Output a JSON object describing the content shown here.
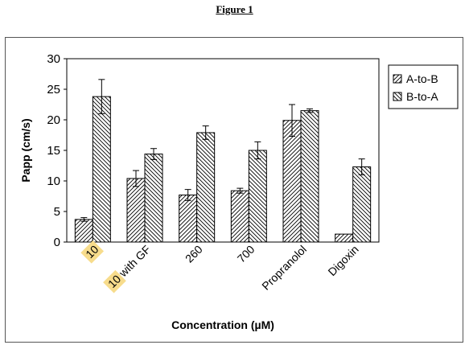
{
  "figure_title": "Figure 1",
  "chart_data": {
    "type": "bar",
    "title": "",
    "xlabel": "Concentration (µM)",
    "ylabel": "Papp (cm/s)",
    "ylim": [
      0,
      30
    ],
    "yticks": [
      "0",
      "5",
      "10",
      "15",
      "20",
      "25",
      "30"
    ],
    "categories": [
      "10",
      "10 with GF",
      "260",
      "700",
      "Propranolol",
      "Digoxin"
    ],
    "category_label_parts": [
      {
        "highlight": "10",
        "rest": ""
      },
      {
        "highlight": "10",
        "rest": " with GF"
      },
      {
        "highlight": "",
        "rest": "260"
      },
      {
        "highlight": "",
        "rest": "700"
      },
      {
        "highlight": "",
        "rest": "Propranolol"
      },
      {
        "highlight": "",
        "rest": "Digoxin"
      }
    ],
    "series": [
      {
        "name": "A-to-B",
        "pattern": "forward-hatch",
        "values": [
          3.7,
          10.4,
          7.7,
          8.4,
          19.9,
          1.3
        ],
        "errors": [
          0.3,
          1.3,
          0.9,
          0.4,
          2.6,
          0
        ]
      },
      {
        "name": "B-to-A",
        "pattern": "back-hatch",
        "values": [
          23.8,
          14.4,
          17.9,
          15.0,
          21.5,
          12.3
        ],
        "errors": [
          2.8,
          0.9,
          1.1,
          1.4,
          0.3,
          1.3
        ]
      }
    ],
    "highlight_color": "#f7dc8c",
    "plot_background": "#ffffff",
    "bar_stroke": "#000000",
    "error_bars": true,
    "grid": false,
    "legend_position": "top-right"
  }
}
